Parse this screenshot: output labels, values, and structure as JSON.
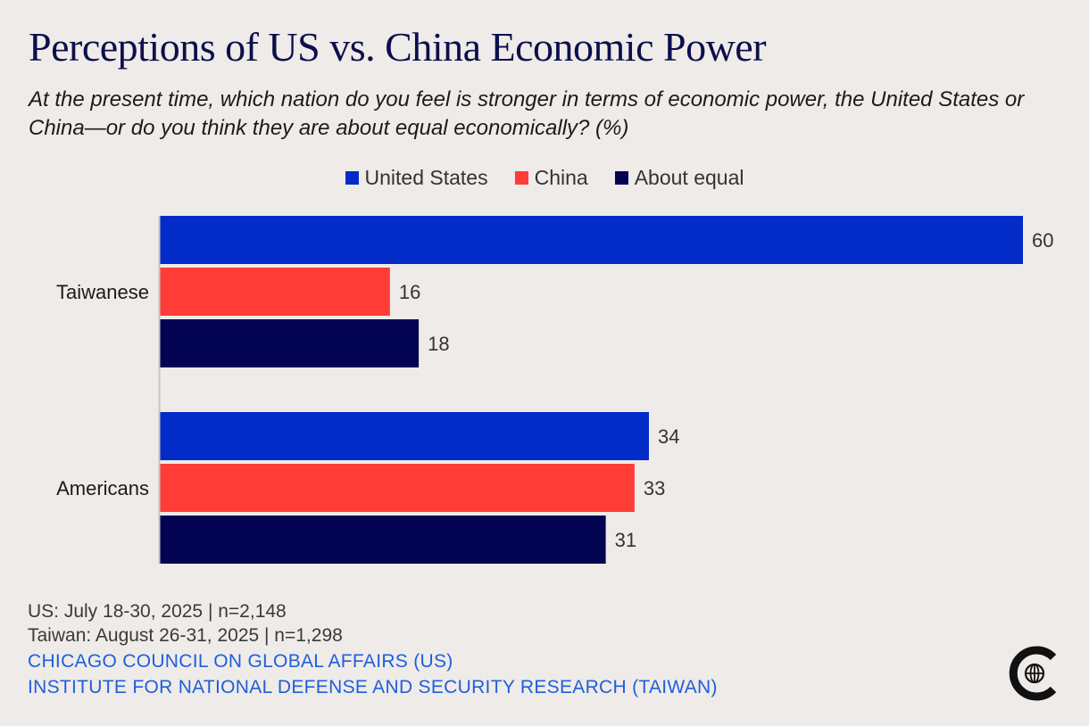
{
  "title": "Perceptions of US vs. China Economic Power",
  "subtitle": "At the present time, which nation do you feel is stronger in terms of economic power, the United States or China—or do you think they are about equal economically? (%)",
  "colors": {
    "united_states": "#022bc7",
    "china": "#ff3c38",
    "about_equal": "#030353"
  },
  "legend": [
    {
      "label": "United States",
      "color": "#022bc7"
    },
    {
      "label": "China",
      "color": "#ff3c38"
    },
    {
      "label": "About equal",
      "color": "#030353"
    }
  ],
  "chart_data": {
    "type": "bar",
    "orientation": "horizontal",
    "categories": [
      "Taiwanese",
      "Americans"
    ],
    "series": [
      {
        "name": "United States",
        "values": [
          60,
          34
        ]
      },
      {
        "name": "China",
        "values": [
          16,
          33
        ]
      },
      {
        "name": "About equal",
        "values": [
          18,
          31
        ]
      }
    ],
    "xlim": [
      0,
      60
    ],
    "unit": "%",
    "grid": false
  },
  "footer": {
    "us_survey": "US: July 18-30, 2025 | n=2,148",
    "taiwan_survey": "Taiwan: August 26-31, 2025 | n=1,298",
    "source_us": "CHICAGO COUNCIL ON GLOBAL AFFAIRS (US)",
    "source_taiwan": "INSTITUTE FOR NATIONAL DEFENSE AND SECURITY RESEARCH (TAIWAN)"
  },
  "logo_icon": "chicago-council-globe-logo"
}
